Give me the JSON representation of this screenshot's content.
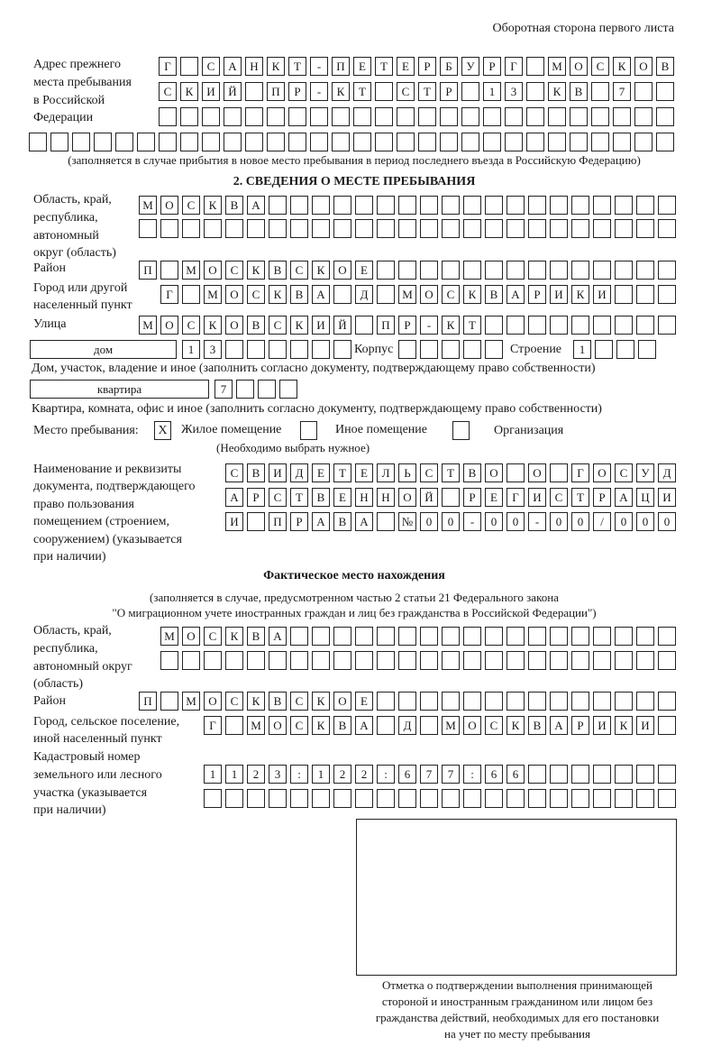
{
  "header": {
    "side_label": "Оборотная сторона первого листа"
  },
  "previous_address": {
    "label_lines": [
      "Адрес прежнего",
      "места пребывания",
      "в Российской",
      "Федерации"
    ],
    "rows": [
      [
        "Г",
        "",
        "С",
        "А",
        "Н",
        "К",
        "Т",
        "-",
        "П",
        "Е",
        "Т",
        "Е",
        "Р",
        "Б",
        "У",
        "Р",
        "Г",
        "",
        "М",
        "О",
        "С",
        "К",
        "О",
        "В"
      ],
      [
        "С",
        "К",
        "И",
        "Й",
        "",
        "П",
        "Р",
        "-",
        "К",
        "Т",
        "",
        "С",
        "Т",
        "Р",
        "",
        "1",
        "3",
        "",
        "К",
        "В",
        "",
        "7",
        "",
        ""
      ],
      [
        "",
        "",
        "",
        "",
        "",
        "",
        "",
        "",
        "",
        "",
        "",
        "",
        "",
        "",
        "",
        "",
        "",
        "",
        "",
        "",
        "",
        "",
        "",
        ""
      ],
      [
        "",
        "",
        "",
        "",
        "",
        "",
        "",
        "",
        "",
        "",
        "",
        "",
        "",
        "",
        "",
        "",
        "",
        "",
        "",
        "",
        "",
        "",
        "",
        "",
        "",
        "",
        "",
        "",
        "",
        ""
      ]
    ],
    "note": "(заполняется в случае прибытия в новое место пребывания в период последнего въезда в Российскую Федерацию)"
  },
  "section2": {
    "title": "2. СВЕДЕНИЯ О МЕСТЕ ПРЕБЫВАНИЯ",
    "region_label_lines": [
      "Область, край,",
      "республика,",
      "автономный",
      "округ (область)"
    ],
    "region_rows": [
      [
        "М",
        "О",
        "С",
        "К",
        "В",
        "А",
        "",
        "",
        "",
        "",
        "",
        "",
        "",
        "",
        "",
        "",
        "",
        "",
        "",
        "",
        "",
        "",
        "",
        "",
        ""
      ],
      [
        "",
        "",
        "",
        "",
        "",
        "",
        "",
        "",
        "",
        "",
        "",
        "",
        "",
        "",
        "",
        "",
        "",
        "",
        "",
        "",
        "",
        "",
        "",
        "",
        ""
      ]
    ],
    "district_label": "Район",
    "district_row": [
      "П",
      "",
      "М",
      "О",
      "С",
      "К",
      "В",
      "С",
      "К",
      "О",
      "Е",
      "",
      "",
      "",
      "",
      "",
      "",
      "",
      "",
      "",
      "",
      "",
      "",
      "",
      ""
    ],
    "city_label_lines": [
      "Город или другой",
      "населенный пункт"
    ],
    "city_row": [
      "Г",
      "",
      "М",
      "О",
      "С",
      "К",
      "В",
      "А",
      "",
      "Д",
      "",
      "М",
      "О",
      "С",
      "К",
      "В",
      "А",
      "Р",
      "И",
      "К",
      "И",
      "",
      "",
      ""
    ],
    "street_label": "Улица",
    "street_row": [
      "М",
      "О",
      "С",
      "К",
      "О",
      "В",
      "С",
      "К",
      "И",
      "Й",
      "",
      "П",
      "Р",
      "-",
      "К",
      "Т",
      "",
      "",
      "",
      "",
      "",
      "",
      "",
      "",
      ""
    ],
    "house_type": "дом",
    "house_cells": [
      "1",
      "3",
      "",
      "",
      "",
      "",
      "",
      ""
    ],
    "building_label": "Корпус",
    "building_cells": [
      "",
      "",
      "",
      "",
      ""
    ],
    "structure_label": "Строение",
    "structure_cells": [
      "1",
      "",
      "",
      ""
    ],
    "house_note": "Дом, участок, владение и иное (заполнить согласно документу, подтверждающему право собственности)",
    "apartment_type": "квартира",
    "apartment_cells": [
      "7",
      "",
      "",
      ""
    ],
    "apartment_note": "Квартира, комната, офис и иное (заполнить согласно документу, подтверждающему право собственности)",
    "place_label": "Место пребывания:",
    "place_options": [
      {
        "label": "Жилое помещение",
        "mark": "X",
        "checked": true
      },
      {
        "label": "Иное помещение",
        "mark": "",
        "checked": false
      },
      {
        "label": "Организация",
        "mark": "",
        "checked": false
      }
    ],
    "place_hint": "(Необходимо выбрать нужное)",
    "document_label_lines": [
      "Наименование и реквизиты",
      "документа, подтверждающего",
      "право пользования",
      "помещением (строением,",
      "сооружением) (указывается",
      "при наличии)"
    ],
    "document_rows": [
      [
        "С",
        "В",
        "И",
        "Д",
        "Е",
        "Т",
        "Е",
        "Л",
        "Ь",
        "С",
        "Т",
        "В",
        "О",
        "",
        "О",
        "",
        "Г",
        "О",
        "С",
        "У",
        "Д"
      ],
      [
        "А",
        "Р",
        "С",
        "Т",
        "В",
        "Е",
        "Н",
        "Н",
        "О",
        "Й",
        "",
        "Р",
        "Е",
        "Г",
        "И",
        "С",
        "Т",
        "Р",
        "А",
        "Ц",
        "И"
      ],
      [
        "И",
        "",
        "П",
        "Р",
        "А",
        "В",
        "А",
        "",
        "№",
        "0",
        "0",
        "-",
        "0",
        "0",
        "-",
        "0",
        "0",
        "/",
        "0",
        "0",
        "0"
      ]
    ]
  },
  "actual_location": {
    "title": "Фактическое место нахождения",
    "note_lines": [
      "(заполняется в случае, предусмотренном частью 2 статьи 21 Федерального закона",
      "\"О миграционном учете иностранных граждан и лиц без гражданства в Российской Федерации\")"
    ],
    "region_label_lines": [
      "Область, край,",
      "республика,",
      "автономный округ",
      "(область)"
    ],
    "region_rows": [
      [
        "М",
        "О",
        "С",
        "К",
        "В",
        "А",
        "",
        "",
        "",
        "",
        "",
        "",
        "",
        "",
        "",
        "",
        "",
        "",
        "",
        "",
        "",
        "",
        "",
        ""
      ],
      [
        "",
        "",
        "",
        "",
        "",
        "",
        "",
        "",
        "",
        "",
        "",
        "",
        "",
        "",
        "",
        "",
        "",
        "",
        "",
        "",
        "",
        "",
        "",
        ""
      ]
    ],
    "district_label": "Район",
    "district_row": [
      "П",
      "",
      "М",
      "О",
      "С",
      "К",
      "В",
      "С",
      "К",
      "О",
      "Е",
      "",
      "",
      "",
      "",
      "",
      "",
      "",
      "",
      "",
      "",
      "",
      "",
      "",
      ""
    ],
    "city_label_lines": [
      "Город, сельское поселение,",
      "иной населенный пункт"
    ],
    "city_row": [
      "Г",
      "",
      "М",
      "О",
      "С",
      "К",
      "В",
      "А",
      "",
      "Д",
      "",
      "М",
      "О",
      "С",
      "К",
      "В",
      "А",
      "Р",
      "И",
      "К",
      "И",
      ""
    ],
    "cadastre_label_lines": [
      "Кадастровый номер",
      "земельного или лесного",
      "участка (указывается",
      "при наличии)"
    ],
    "cadastre_rows": [
      [
        "1",
        "1",
        "2",
        "3",
        ":",
        "1",
        "2",
        "2",
        ":",
        "6",
        "7",
        "7",
        ":",
        "6",
        "6",
        "",
        "",
        "",
        "",
        "",
        "",
        ""
      ],
      [
        "",
        "",
        "",
        "",
        "",
        "",
        "",
        "",
        "",
        "",
        "",
        "",
        "",
        "",
        "",
        "",
        "",
        "",
        "",
        "",
        "",
        ""
      ]
    ]
  },
  "confirmation": {
    "caption_lines": [
      "Отметка о подтверждении выполнения принимающей",
      "стороной и иностранным гражданином или лицом без",
      "гражданства действий, необходимых для его постановки",
      "на учет по месту пребывания"
    ]
  }
}
